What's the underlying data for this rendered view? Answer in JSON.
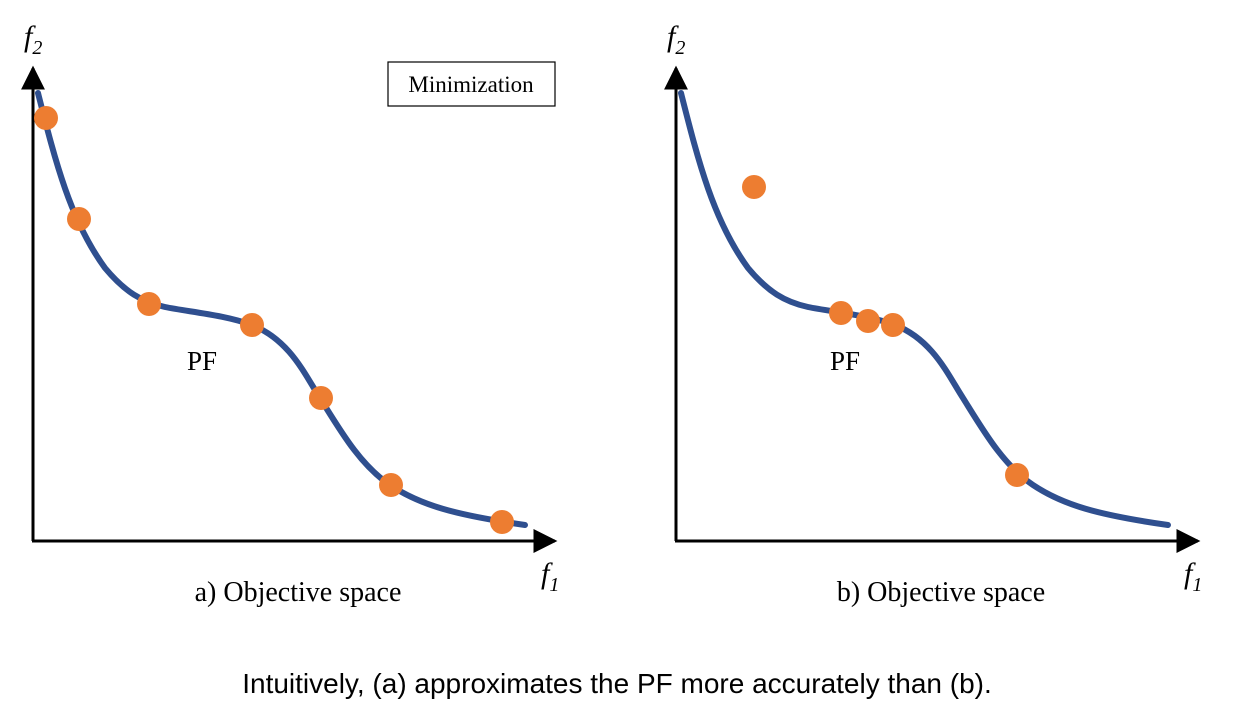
{
  "panel_a": {
    "axis_y_label_base": "f",
    "axis_y_label_sub": "2",
    "axis_x_label_base": "f",
    "axis_x_label_sub": "1",
    "curve_label": "PF",
    "legend_box_label": "Minimization",
    "caption": "a) Objective space"
  },
  "panel_b": {
    "axis_y_label_base": "f",
    "axis_y_label_sub": "2",
    "axis_x_label_base": "f",
    "axis_x_label_sub": "1",
    "curve_label": "PF",
    "caption": "b) Objective space"
  },
  "footer_text": "Intuitively, (a) approximates the PF more accurately than (b).",
  "colors": {
    "curve": "#2f4f8f",
    "point": "#ed7d31",
    "axis": "#000000",
    "text": "#000000"
  }
}
